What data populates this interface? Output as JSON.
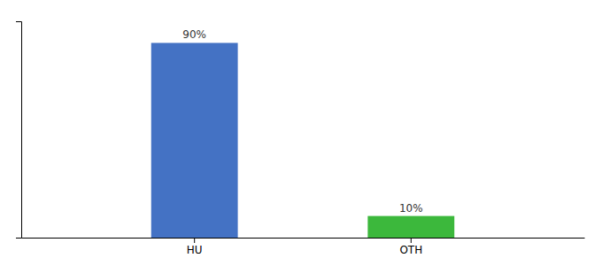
{
  "chart_data": {
    "type": "bar",
    "categories": [
      "HU",
      "OTH"
    ],
    "values": [
      90,
      10
    ],
    "value_labels": [
      "90%",
      "10%"
    ],
    "colors": [
      "#4472c4",
      "#3cb83c"
    ],
    "ylim": [
      0,
      100
    ],
    "data_labels": true,
    "tick_labels": "x",
    "grid": false
  }
}
